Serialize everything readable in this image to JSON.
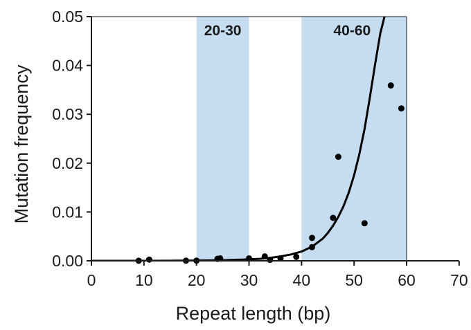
{
  "chart_data": {
    "type": "scatter",
    "title": "",
    "xlabel": "Repeat length (bp)",
    "ylabel": "Mutation frequency",
    "xlim": [
      0,
      70
    ],
    "ylim": [
      0,
      0.05
    ],
    "x_ticks": [
      0,
      10,
      20,
      30,
      40,
      50,
      60,
      70
    ],
    "x_tick_labels": [
      "0",
      "10",
      "20",
      "30",
      "40",
      "50",
      "60",
      "70"
    ],
    "y_ticks": [
      0,
      0.01,
      0.02,
      0.03,
      0.04,
      0.05
    ],
    "y_tick_labels": [
      "0.00",
      "0.01",
      "0.02",
      "0.03",
      "0.04",
      "0.05"
    ],
    "grid": false,
    "legend": "none",
    "shaded_regions": [
      {
        "x_start": 20,
        "x_end": 30,
        "label": "20-30",
        "color": "#c6dcf1"
      },
      {
        "x_start": 40,
        "x_end": 60,
        "label": "40-60",
        "color": "#c6dcf1"
      }
    ],
    "series": [
      {
        "type": "scatter",
        "color": "#000000",
        "x": [
          9,
          11,
          18,
          20,
          24,
          24.5,
          30,
          33,
          34,
          36,
          39,
          42,
          42,
          46,
          47,
          52,
          57,
          59
        ],
        "y": [
          2e-05,
          0.00025,
          3e-05,
          4e-05,
          0.0004,
          0.0005,
          0.0005,
          0.0009,
          0.0002,
          0.0005,
          0.0008,
          0.0028,
          0.0047,
          0.0088,
          0.0213,
          0.0077,
          0.0359,
          0.0312
        ]
      },
      {
        "type": "line",
        "color": "#000000",
        "x": [
          0,
          5,
          10,
          15,
          20,
          25,
          30,
          32,
          34,
          36,
          38,
          40,
          42,
          44,
          45,
          46,
          47,
          48,
          49,
          50,
          51,
          52,
          53,
          54,
          55,
          55.5,
          55.9
        ],
        "y": [
          0.0,
          0.0,
          0.0,
          2e-05,
          6e-05,
          0.00013,
          0.0003,
          0.0004,
          0.0006,
          0.0009,
          0.0013,
          0.0019,
          0.0029,
          0.0045,
          0.0057,
          0.0072,
          0.009,
          0.0112,
          0.014,
          0.0175,
          0.0218,
          0.027,
          0.0334,
          0.0402,
          0.0466,
          0.0487,
          0.0505
        ]
      }
    ]
  }
}
